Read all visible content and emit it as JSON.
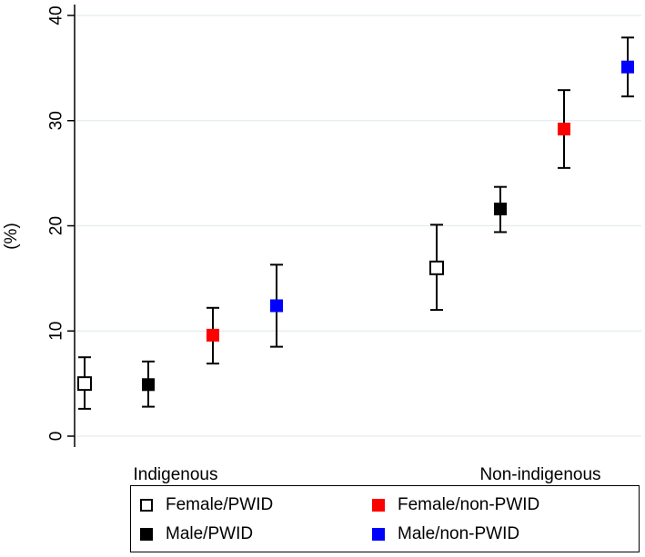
{
  "chart_data": {
    "type": "scatter",
    "ylabel": "(%)",
    "ylim": [
      0,
      40
    ],
    "yticks": [
      0,
      10,
      20,
      30,
      40
    ],
    "grid": true,
    "groups": [
      "Indigenous",
      "Non-indigenous"
    ],
    "series": [
      {
        "name": "Female/PWID",
        "color": "#ffffff",
        "stroke": "#000000",
        "values": [
          5.0,
          16.0
        ],
        "lower": [
          2.6,
          12.0
        ],
        "upper": [
          7.5,
          20.1
        ]
      },
      {
        "name": "Male/PWID",
        "color": "#000000",
        "stroke": "#000000",
        "values": [
          4.9,
          21.6
        ],
        "lower": [
          2.8,
          19.4
        ],
        "upper": [
          7.1,
          23.7
        ]
      },
      {
        "name": "Female/non-PWID",
        "color": "#ff0000",
        "stroke": "#ff0000",
        "values": [
          9.6,
          29.2
        ],
        "lower": [
          6.9,
          25.5
        ],
        "upper": [
          12.2,
          32.9
        ]
      },
      {
        "name": "Male/non-PWID",
        "color": "#0000ff",
        "stroke": "#0000ff",
        "values": [
          12.4,
          35.1
        ],
        "lower": [
          8.5,
          32.3
        ],
        "upper": [
          16.3,
          37.9
        ]
      }
    ],
    "legend_position": "bottom"
  }
}
